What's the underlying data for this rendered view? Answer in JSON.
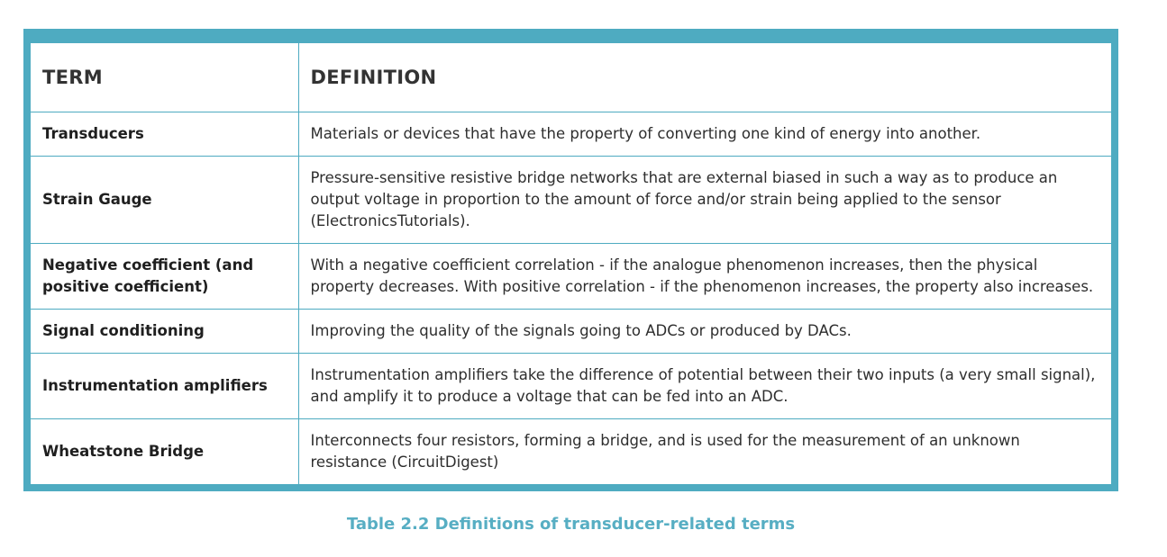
{
  "table": {
    "headers": {
      "term": "TERM",
      "definition": "DEFINITION"
    },
    "rows": [
      {
        "term": "Transducers",
        "definition": "Materials or devices that have the property of converting one kind of energy into another."
      },
      {
        "term": "Strain Gauge",
        "definition": "Pressure-sensitive resistive bridge networks that are external biased in such a way as to produce an output voltage in proportion to the amount of force and/or strain being applied to the sensor (ElectronicsTutorials)."
      },
      {
        "term": "Negative coefficient (and positive coefficient)",
        "definition": "With a negative coefficient correlation - if the analogue phenomenon increases, then the physical property decreases. With positive correlation - if the phenomenon increases, the property also increases."
      },
      {
        "term": "Signal conditioning",
        "definition": "Improving the quality of the signals going to ADCs or produced by DACs."
      },
      {
        "term": "Instrumentation amplifiers",
        "definition": "Instrumentation amplifiers take the difference of potential between their two inputs (a very small signal), and amplify it to produce a voltage that can be fed into an ADC."
      },
      {
        "term": "Wheatstone Bridge",
        "definition": "Interconnects four resistors, forming a bridge, and is used for the measurement of an unknown resistance (CircuitDigest)"
      }
    ]
  },
  "caption": "Table 2.2 Definitions of transducer-related terms",
  "colors": {
    "border": "#4eabc1",
    "caption": "#57aec3"
  }
}
